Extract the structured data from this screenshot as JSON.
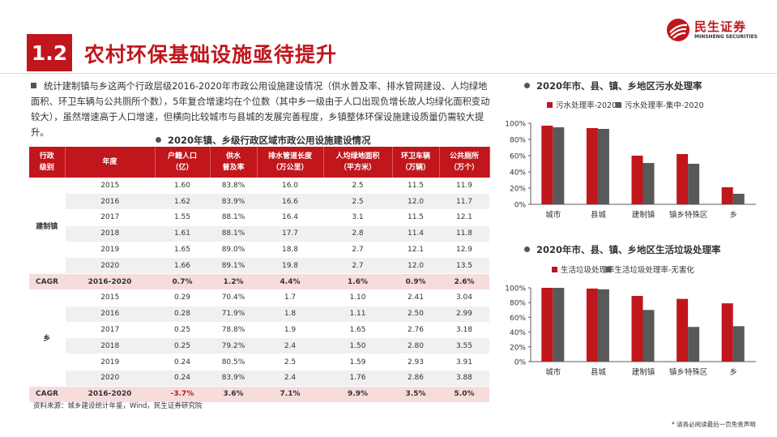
{
  "header": {
    "section_number": "1.2",
    "title": "农村环保基础设施亟待提升",
    "logo_cn": "民生证券",
    "logo_en": "MINSHENG SECURITIES"
  },
  "intro": "统计建制镇与乡这两个行政层级2016-2020年市政公用设施建设情况（供水普及率、排水管网建设、人均绿地面积、环卫车辆与公共厕所个数），5年复合增速均在个位数（其中乡一级由于人口出现负增长故人均绿化面积变动较大），虽然增速高于人口增速，但横向比较城市与县城的发展完善程度，乡镇整体环保设施建设质量仍需较大提升。",
  "table": {
    "title": "2020年镇、乡级行政区域市政公用设施建设情况",
    "headers": [
      [
        "行政",
        "级别"
      ],
      [
        "年度"
      ],
      [
        "户籍人口",
        "（亿）"
      ],
      [
        "供水",
        "普及率"
      ],
      [
        "排水管道长度",
        "（万公里）"
      ],
      [
        "人均绿地面积",
        "（平方米）"
      ],
      [
        "环卫车辆",
        "（万辆）"
      ],
      [
        "公共厕所",
        "（万个）"
      ]
    ],
    "groups": [
      {
        "name": "建制镇",
        "rows": [
          [
            "2015",
            "1.60",
            "83.8%",
            "16.0",
            "2.5",
            "11.5",
            "11.9"
          ],
          [
            "2016",
            "1.62",
            "83.9%",
            "16.6",
            "2.5",
            "12.0",
            "11.7"
          ],
          [
            "2017",
            "1.55",
            "88.1%",
            "16.4",
            "3.1",
            "11.5",
            "12.1"
          ],
          [
            "2018",
            "1.61",
            "88.1%",
            "17.7",
            "2.8",
            "11.4",
            "11.8"
          ],
          [
            "2019",
            "1.65",
            "89.0%",
            "18.8",
            "2.7",
            "12.1",
            "12.9"
          ],
          [
            "2020",
            "1.66",
            "89.1%",
            "19.8",
            "2.7",
            "12.0",
            "13.5"
          ]
        ],
        "cagr": [
          "CAGR",
          "2016-2020",
          "0.7%",
          "1.2%",
          "4.4%",
          "1.6%",
          "0.9%",
          "2.6%"
        ]
      },
      {
        "name": "乡",
        "rows": [
          [
            "2015",
            "0.29",
            "70.4%",
            "1.7",
            "1.10",
            "2.41",
            "3.04"
          ],
          [
            "2016",
            "0.28",
            "71.9%",
            "1.8",
            "1.11",
            "2.50",
            "2.99"
          ],
          [
            "2017",
            "0.25",
            "78.8%",
            "1.9",
            "1.65",
            "2.76",
            "3.18"
          ],
          [
            "2018",
            "0.25",
            "79.2%",
            "2.4",
            "1.50",
            "2.80",
            "3.55"
          ],
          [
            "2019",
            "0.24",
            "80.5%",
            "2.5",
            "1.59",
            "2.93",
            "3.91"
          ],
          [
            "2020",
            "0.24",
            "83.9%",
            "2.4",
            "1.76",
            "2.86",
            "3.88"
          ]
        ],
        "cagr": [
          "CAGR",
          "2016-2020",
          "-3.7%",
          "3.6%",
          "7.1%",
          "9.9%",
          "3.5%",
          "5.0%"
        ]
      }
    ]
  },
  "source": "资料来源：城乡建设统计年鉴，Wind，民生证券研究院",
  "footnote": "* 请务必阅读最后一页免责声明",
  "colors": {
    "accent": "#c0161c",
    "series2": "#595959"
  },
  "chart_data": [
    {
      "type": "bar",
      "title": "2020年市、县、镇、乡地区污水处理率",
      "categories": [
        "城市",
        "县城",
        "建制镇",
        "镇乡特殊区",
        "乡"
      ],
      "series": [
        {
          "name": "污水处理率-2020",
          "values": [
            97,
            94,
            60,
            62,
            21
          ]
        },
        {
          "name": "污水处理率-集中-2020",
          "values": [
            95,
            93,
            51,
            50,
            13
          ]
        }
      ],
      "yticks": [
        "0%",
        "20%",
        "40%",
        "60%",
        "80%",
        "100%"
      ],
      "ylim": [
        0,
        100
      ],
      "legend": "top"
    },
    {
      "type": "bar",
      "title": "2020年市、县、镇、乡地区生活垃圾处理率",
      "categories": [
        "城市",
        "县城",
        "建制镇",
        "镇乡特殊区",
        "乡"
      ],
      "series": [
        {
          "name": "生活垃圾处理率",
          "values": [
            100,
            99,
            89,
            85,
            79
          ]
        },
        {
          "name": "生活垃圾处理率-无害化",
          "values": [
            100,
            98,
            70,
            47,
            48
          ]
        }
      ],
      "yticks": [
        "0%",
        "20%",
        "40%",
        "60%",
        "80%",
        "100%"
      ],
      "ylim": [
        0,
        100
      ],
      "legend": "top"
    }
  ]
}
